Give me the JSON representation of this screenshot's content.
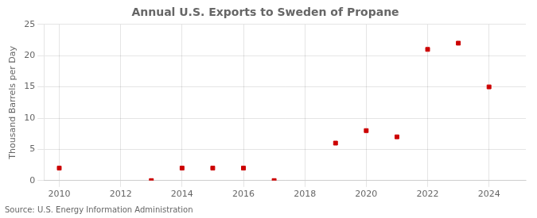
{
  "chart_data": {
    "type": "scatter",
    "title": "Annual U.S. Exports to Sweden of Propane",
    "ylabel": "Thousand Barrels per Day",
    "annotation": "Source: U.S. Energy Information Administration",
    "x": [
      2010,
      2013,
      2014,
      2015,
      2016,
      2017,
      2019,
      2020,
      2021,
      2022,
      2023,
      2024
    ],
    "values": [
      2,
      0,
      2,
      2,
      2,
      0,
      6,
      8,
      7,
      21,
      22,
      15
    ],
    "color": "#cc0000",
    "marker": "square",
    "xlim": [
      2009.5,
      2025.2
    ],
    "xticks": [
      2010,
      2012,
      2014,
      2016,
      2018,
      2020,
      2022,
      2024
    ],
    "ylim": [
      0,
      25
    ],
    "yticks": [
      0,
      5,
      10,
      15,
      20,
      25
    ],
    "grid": true
  }
}
